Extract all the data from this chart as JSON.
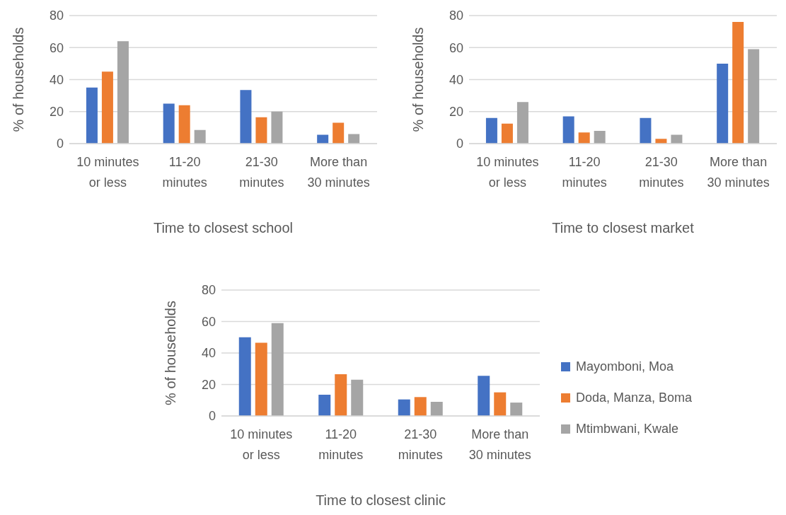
{
  "chart_data": [
    {
      "type": "bar",
      "xlabel": "Time to closest school",
      "ylabel": "% of households",
      "categories": [
        "10 minutes or less",
        "11-20 minutes",
        "21-30 minutes",
        "More than 30 minutes"
      ],
      "series": [
        {
          "color": "#4472c4",
          "values": [
            35,
            25,
            33.5,
            5.5
          ]
        },
        {
          "color": "#ed7d31",
          "values": [
            45,
            24,
            16.5,
            13
          ]
        },
        {
          "color": "#a5a5a5",
          "values": [
            64,
            8.5,
            20,
            6
          ]
        }
      ],
      "ylim": [
        0,
        80
      ],
      "yticks": [
        0,
        20,
        40,
        60,
        80
      ],
      "grid": "y",
      "legend": false
    },
    {
      "type": "bar",
      "xlabel": "Time to closest market",
      "ylabel": "% of households",
      "categories": [
        "10 minutes or less",
        "11-20 minutes",
        "21-30 minutes",
        "More than 30 minutes"
      ],
      "series": [
        {
          "color": "#4472c4",
          "values": [
            16,
            17,
            16,
            50
          ]
        },
        {
          "color": "#ed7d31",
          "values": [
            12.5,
            7,
            3,
            76
          ]
        },
        {
          "color": "#a5a5a5",
          "values": [
            26,
            8,
            5.5,
            59
          ]
        }
      ],
      "ylim": [
        0,
        80
      ],
      "yticks": [
        0,
        20,
        40,
        60,
        80
      ],
      "grid": "y",
      "legend": false
    },
    {
      "type": "bar",
      "xlabel": "Time to closest clinic",
      "ylabel": "% of households",
      "categories": [
        "10 minutes or less",
        "11-20 minutes",
        "21-30 minutes",
        "More than 30 minutes"
      ],
      "series": [
        {
          "name": "Mayomboni, Moa",
          "color": "#4472c4",
          "values": [
            50,
            13.5,
            10.5,
            25.5
          ]
        },
        {
          "name": "Doda, Manza, Boma",
          "color": "#ed7d31",
          "values": [
            46.5,
            26.5,
            12,
            15
          ]
        },
        {
          "name": "Mtimbwani, Kwale",
          "color": "#a5a5a5",
          "values": [
            59,
            23,
            9,
            8.5
          ]
        }
      ],
      "ylim": [
        0,
        80
      ],
      "yticks": [
        0,
        20,
        40,
        60,
        80
      ],
      "grid": "y",
      "legend": "right"
    }
  ]
}
